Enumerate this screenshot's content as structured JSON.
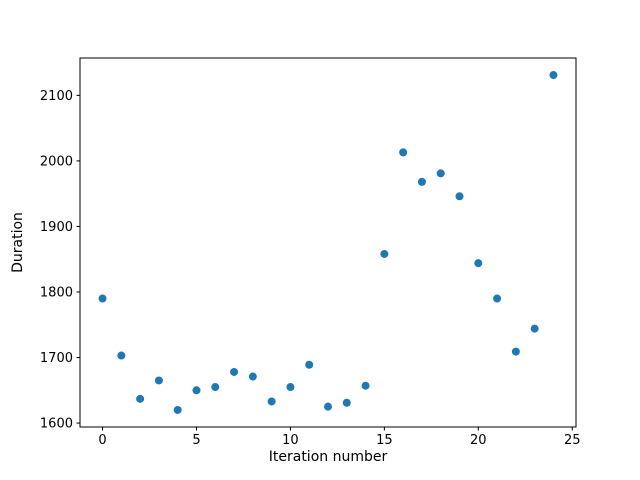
{
  "chart_data": {
    "type": "scatter",
    "title": "",
    "xlabel": "Iteration number",
    "ylabel": "Duration",
    "x": [
      0,
      1,
      2,
      3,
      4,
      5,
      6,
      7,
      8,
      9,
      10,
      11,
      12,
      13,
      14,
      15,
      16,
      17,
      18,
      19,
      20,
      21,
      22,
      23,
      24
    ],
    "y": [
      1790,
      1703,
      1637,
      1665,
      1620,
      1650,
      1655,
      1678,
      1671,
      1633,
      1655,
      1689,
      1625,
      1631,
      1657,
      1858,
      2013,
      1968,
      1981,
      1946,
      1844,
      1790,
      1709,
      1744,
      2131
    ],
    "xlim": [
      -1.2,
      25.2
    ],
    "ylim": [
      1594,
      2157
    ],
    "xticks": [
      0,
      5,
      10,
      15,
      20,
      25
    ],
    "yticks": [
      1600,
      1700,
      1800,
      1900,
      2000,
      2100
    ],
    "marker_color": "#1f77b4",
    "axis_color": "#000000",
    "grid": false,
    "legend_position": "none"
  }
}
